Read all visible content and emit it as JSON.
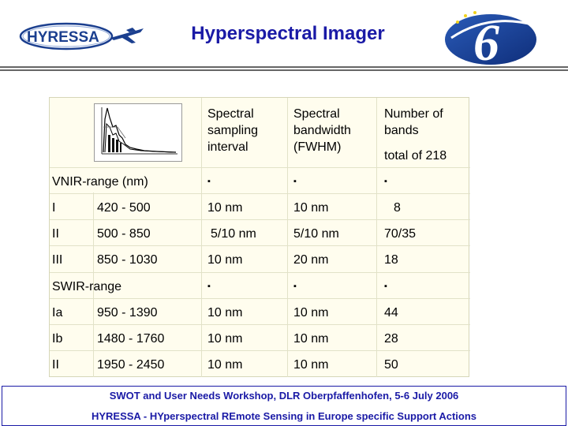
{
  "header": {
    "title": "Hyperspectral Imager",
    "logo_text": "HYRESSA",
    "logo_six": "6"
  },
  "table": {
    "columns": [
      {
        "label": "Spectral sampling interval"
      },
      {
        "label": "Spectral bandwidth (FWHM)"
      },
      {
        "label": "Number of bands",
        "sub": "total of 218"
      }
    ],
    "sections": [
      {
        "label": "VNIR-range (nm)",
        "markers": [
          "▪",
          "▪",
          "▪"
        ],
        "rows": [
          {
            "id": "I",
            "range": "420 -   500",
            "sampling": "10 nm",
            "bandwidth": "10 nm",
            "bands": "8"
          },
          {
            "id": "II",
            "range": "500 -   850",
            "sampling": "5/10 nm",
            "bandwidth": "5/10 nm",
            "bands": "70/35"
          },
          {
            "id": "III",
            "range": "850 - 1030",
            "sampling": "10 nm",
            "bandwidth": "20 nm",
            "bands": "18"
          }
        ]
      },
      {
        "label": "SWIR-range",
        "markers": [
          "▪",
          "▪",
          "▪"
        ],
        "rows": [
          {
            "id": "Ia",
            "range": "950 - 1390",
            "sampling": "10 nm",
            "bandwidth": "10 nm",
            "bands": "44"
          },
          {
            "id": "Ib",
            "range": "1480 - 1760",
            "sampling": "10 nm",
            "bandwidth": "10 nm",
            "bands": "28"
          },
          {
            "id": "II",
            "range": "1950 - 2450",
            "sampling": "10 nm",
            "bandwidth": "10 nm",
            "bands": "50"
          }
        ]
      }
    ]
  },
  "footer": {
    "line1": "SWOT and User Needs Workshop, DLR Oberpfaffenhofen,  5-6 July 2006",
    "line2": "HYRESSA - HYperspectral REmote Sensing in Europe specific Support Actions"
  },
  "colors": {
    "title": "#1a1aa6",
    "table_bg": "#fffdee",
    "logo_blue": "#1b3f8f"
  }
}
